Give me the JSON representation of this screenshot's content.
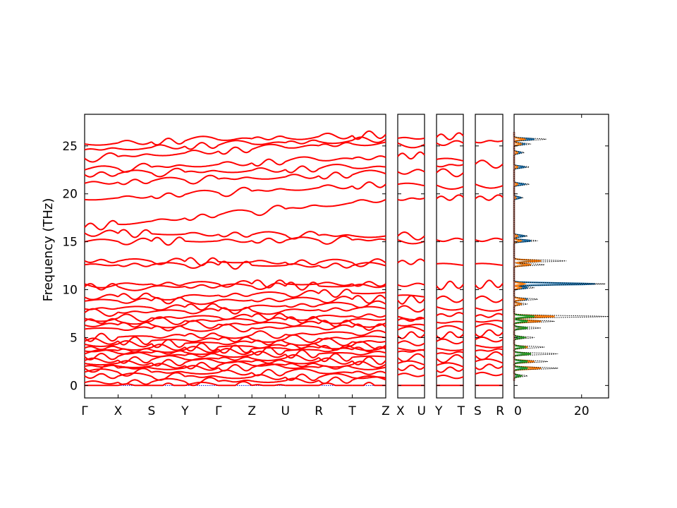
{
  "chart_data": {
    "type": "line",
    "ylabel": "Frequency (THz)",
    "ylim": [
      -1.3,
      28.3
    ],
    "yticks": [
      0,
      5,
      10,
      15,
      20,
      25
    ],
    "grid": false,
    "band_color": "#ff0000",
    "zero_line_color": "#0000cc",
    "panels": [
      {
        "id": "main",
        "xticks": [
          "Γ",
          "X",
          "S",
          "Y",
          "Γ",
          "Z",
          "U",
          "R",
          "T",
          "Z"
        ],
        "bands_left": [
          0,
          0.3,
          1.0,
          1.4,
          1.8,
          2.0,
          2.3,
          2.6,
          3.0,
          3.3,
          3.6,
          3.9,
          4.3,
          4.6,
          5.0,
          5.9,
          6.3,
          6.7,
          7.0,
          7.6,
          8.0,
          8.8,
          9.2,
          10.3,
          10.6,
          12.6,
          13.0,
          15.0,
          15.9,
          16.5,
          19.4,
          21.1,
          22.0,
          22.5,
          23.7,
          24.6,
          25.2,
          25.6
        ],
        "bands_right": [
          0,
          0.6,
          0.8,
          1.3,
          1.9,
          2.2,
          2.6,
          3.0,
          3.4,
          3.8,
          4.0,
          4.2,
          4.6,
          5.0,
          5.5,
          6.1,
          6.5,
          6.9,
          7.3,
          8.0,
          8.5,
          9.0,
          9.7,
          10.4,
          10.6,
          12.5,
          12.8,
          15.2,
          15.6,
          19.4,
          21.0,
          22.1,
          22.8,
          23.8,
          25.4,
          25.7,
          26.2
        ]
      },
      {
        "id": "XU",
        "xticks": [
          "X",
          "U"
        ],
        "bands": [
          0,
          1.1,
          1.8,
          2.3,
          2.9,
          3.5,
          3.9,
          4.4,
          5.2,
          5.8,
          6.3,
          6.8,
          7.2,
          8.0,
          8.9,
          9.4,
          10.5,
          12.8,
          15.2,
          15.6,
          19.4,
          21.0,
          22.3,
          23.9,
          25.3,
          25.8
        ]
      },
      {
        "id": "YT",
        "xticks": [
          "Y",
          "T"
        ],
        "bands": [
          0,
          0.9,
          1.6,
          2.1,
          2.8,
          3.3,
          3.9,
          4.6,
          5.2,
          5.9,
          6.6,
          7.3,
          8.2,
          9.0,
          10.4,
          12.7,
          15.2,
          19.5,
          20.9,
          22.2,
          22.9,
          23.6,
          25.3,
          25.9
        ]
      },
      {
        "id": "SR",
        "xticks": [
          "S",
          "R"
        ],
        "bands": [
          0,
          1.2,
          1.9,
          2.5,
          3.1,
          3.6,
          4.2,
          4.8,
          5.4,
          6.1,
          6.7,
          7.2,
          8.1,
          9.0,
          10.5,
          12.7,
          15.2,
          19.5,
          21.0,
          23.1,
          25.4
        ]
      }
    ],
    "dos": {
      "xticks": [
        0,
        20
      ],
      "xlim": [
        0,
        28
      ],
      "series_colors": [
        "#1f77b4",
        "#ff7f0e",
        "#2ca02c",
        "#d62728",
        "#9467bd",
        "#8c564b"
      ],
      "total_line_color": "#000000",
      "peaks": [
        {
          "f": 25.7,
          "total": 9.5,
          "part": [
            6,
            3
          ]
        },
        {
          "f": 25.2,
          "total": 5,
          "part": [
            3,
            2
          ]
        },
        {
          "f": 24.3,
          "total": 3,
          "part": [
            2,
            1
          ]
        },
        {
          "f": 22.8,
          "total": 4.5,
          "part": [
            3,
            1
          ]
        },
        {
          "f": 21.0,
          "total": 4.5,
          "part": [
            3,
            1
          ]
        },
        {
          "f": 19.6,
          "total": 2.5,
          "part": [
            2,
            0.5
          ]
        },
        {
          "f": 15.6,
          "total": 4,
          "part": [
            3,
            1
          ]
        },
        {
          "f": 15.1,
          "total": 7,
          "part": [
            5,
            2
          ]
        },
        {
          "f": 13.0,
          "total": 15.5,
          "part": [
            6,
            8
          ]
        },
        {
          "f": 12.6,
          "total": 9,
          "part": [
            4,
            5
          ]
        },
        {
          "f": 10.6,
          "total": 27,
          "part": [
            24,
            3
          ]
        },
        {
          "f": 10.2,
          "total": 6,
          "part": [
            4,
            2
          ]
        },
        {
          "f": 9.0,
          "total": 7,
          "part": [
            4,
            3
          ]
        },
        {
          "f": 8.5,
          "total": 4,
          "part": [
            2,
            2
          ]
        },
        {
          "f": 7.2,
          "total": 28,
          "part": [
            8,
            12,
            6
          ]
        },
        {
          "f": 6.7,
          "total": 12,
          "part": [
            4,
            8,
            4
          ]
        },
        {
          "f": 6.0,
          "total": 8,
          "part": [
            2,
            3,
            4
          ]
        },
        {
          "f": 5.0,
          "total": 6,
          "part": [
            2,
            3,
            3
          ]
        },
        {
          "f": 4.0,
          "total": 9,
          "part": [
            3,
            4,
            3
          ]
        },
        {
          "f": 3.3,
          "total": 13,
          "part": [
            4,
            5,
            5
          ]
        },
        {
          "f": 2.5,
          "total": 10,
          "part": [
            3,
            6,
            4
          ]
        },
        {
          "f": 1.8,
          "total": 13,
          "part": [
            3,
            8,
            4
          ]
        },
        {
          "f": 1.0,
          "total": 4,
          "part": [
            1,
            2,
            2
          ]
        }
      ]
    }
  }
}
